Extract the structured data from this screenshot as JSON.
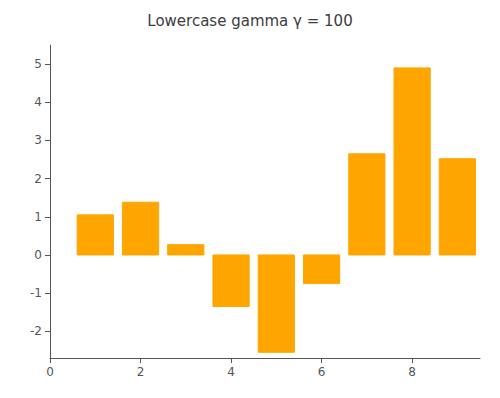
{
  "chart_data": {
    "type": "bar",
    "title": "Lowercase gamma γ = 100",
    "x": [
      1,
      2,
      3,
      4,
      5,
      6,
      7,
      8,
      9
    ],
    "values": [
      1.05,
      1.38,
      0.27,
      -1.35,
      -2.55,
      -0.75,
      2.65,
      4.9,
      2.52
    ],
    "color": "#FFA500",
    "xlim": [
      0,
      9.5
    ],
    "xticks": [
      0,
      2,
      4,
      6,
      8
    ],
    "ylim": [
      -2.7,
      5.5
    ],
    "yticks": [
      -2,
      -1,
      0,
      1,
      2,
      3,
      4,
      5
    ],
    "grid": false
  }
}
